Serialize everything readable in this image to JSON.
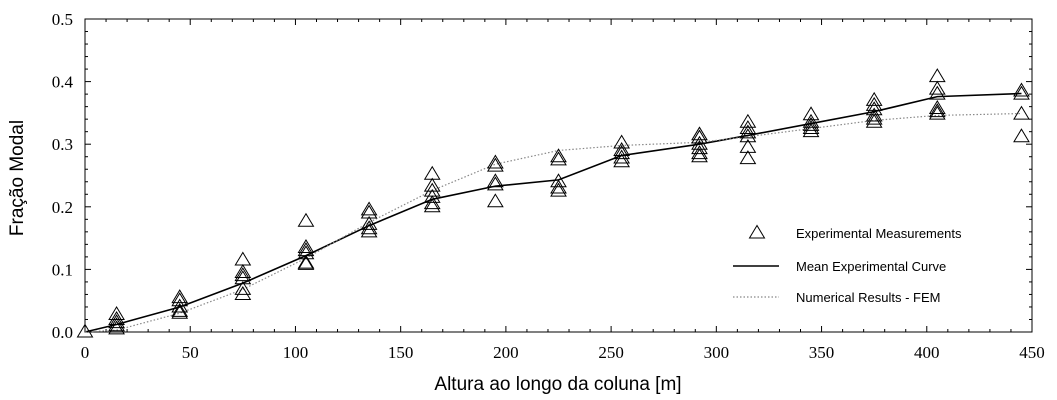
{
  "chart_data": {
    "type": "scatter",
    "xlabel": "Altura ao longo da coluna [m]",
    "ylabel": "Fração Modal",
    "xlim": [
      0,
      450
    ],
    "ylim": [
      0,
      0.5
    ],
    "xticks": [
      "0",
      "50",
      "100",
      "150",
      "200",
      "250",
      "300",
      "350",
      "400",
      "450"
    ],
    "yticks": [
      "0.0",
      "0.1",
      "0.2",
      "0.3",
      "0.4",
      "0.5"
    ],
    "grid": false,
    "legend": {
      "position": "lower-right",
      "entries": [
        "Experimental Measurements",
        "Mean Experimental Curve",
        "Numerical Results - FEM"
      ]
    },
    "series": [
      {
        "name": "Experimental Measurements",
        "type": "scatter",
        "marker": "triangle-open",
        "points": [
          [
            0,
            0.0
          ],
          [
            15,
            0.005
          ],
          [
            15,
            0.01
          ],
          [
            15,
            0.015
          ],
          [
            15,
            0.02
          ],
          [
            15,
            0.028
          ],
          [
            45,
            0.03
          ],
          [
            45,
            0.033
          ],
          [
            45,
            0.04
          ],
          [
            45,
            0.05
          ],
          [
            45,
            0.055
          ],
          [
            75,
            0.06
          ],
          [
            75,
            0.068
          ],
          [
            75,
            0.085
          ],
          [
            75,
            0.09
          ],
          [
            75,
            0.095
          ],
          [
            75,
            0.115
          ],
          [
            105,
            0.108
          ],
          [
            105,
            0.11
          ],
          [
            105,
            0.125
          ],
          [
            105,
            0.13
          ],
          [
            105,
            0.135
          ],
          [
            105,
            0.177
          ],
          [
            135,
            0.16
          ],
          [
            135,
            0.165
          ],
          [
            135,
            0.172
          ],
          [
            135,
            0.19
          ],
          [
            135,
            0.195
          ],
          [
            165,
            0.2
          ],
          [
            165,
            0.205
          ],
          [
            165,
            0.215
          ],
          [
            165,
            0.225
          ],
          [
            165,
            0.233
          ],
          [
            165,
            0.252
          ],
          [
            195,
            0.208
          ],
          [
            195,
            0.235
          ],
          [
            195,
            0.24
          ],
          [
            195,
            0.265
          ],
          [
            195,
            0.27
          ],
          [
            225,
            0.225
          ],
          [
            225,
            0.23
          ],
          [
            225,
            0.24
          ],
          [
            225,
            0.275
          ],
          [
            225,
            0.28
          ],
          [
            255,
            0.272
          ],
          [
            255,
            0.278
          ],
          [
            255,
            0.285
          ],
          [
            255,
            0.29
          ],
          [
            255,
            0.302
          ],
          [
            292,
            0.28
          ],
          [
            292,
            0.285
          ],
          [
            292,
            0.293
          ],
          [
            292,
            0.3
          ],
          [
            292,
            0.31
          ],
          [
            292,
            0.315
          ],
          [
            315,
            0.277
          ],
          [
            315,
            0.295
          ],
          [
            315,
            0.312
          ],
          [
            315,
            0.318
          ],
          [
            315,
            0.325
          ],
          [
            315,
            0.335
          ],
          [
            345,
            0.32
          ],
          [
            345,
            0.325
          ],
          [
            345,
            0.33
          ],
          [
            345,
            0.335
          ],
          [
            345,
            0.347
          ],
          [
            375,
            0.335
          ],
          [
            375,
            0.34
          ],
          [
            375,
            0.345
          ],
          [
            375,
            0.355
          ],
          [
            375,
            0.362
          ],
          [
            375,
            0.37
          ],
          [
            405,
            0.348
          ],
          [
            405,
            0.352
          ],
          [
            405,
            0.357
          ],
          [
            405,
            0.38
          ],
          [
            405,
            0.388
          ],
          [
            405,
            0.408
          ],
          [
            445,
            0.312
          ],
          [
            445,
            0.348
          ],
          [
            445,
            0.38
          ],
          [
            445,
            0.385
          ]
        ]
      },
      {
        "name": "Mean Experimental Curve",
        "type": "line",
        "style": "solid",
        "color": "#000000",
        "points": [
          [
            0,
            0.0
          ],
          [
            15,
            0.012
          ],
          [
            45,
            0.04
          ],
          [
            75,
            0.078
          ],
          [
            105,
            0.122
          ],
          [
            135,
            0.17
          ],
          [
            165,
            0.212
          ],
          [
            195,
            0.233
          ],
          [
            225,
            0.243
          ],
          [
            255,
            0.282
          ],
          [
            292,
            0.3
          ],
          [
            315,
            0.314
          ],
          [
            345,
            0.333
          ],
          [
            375,
            0.352
          ],
          [
            405,
            0.376
          ],
          [
            445,
            0.381
          ]
        ]
      },
      {
        "name": "Numerical Results - FEM",
        "type": "line",
        "style": "dotted",
        "color": "#888888",
        "points": [
          [
            0,
            0.0
          ],
          [
            15,
            0.003
          ],
          [
            45,
            0.03
          ],
          [
            75,
            0.068
          ],
          [
            105,
            0.118
          ],
          [
            135,
            0.175
          ],
          [
            165,
            0.226
          ],
          [
            195,
            0.268
          ],
          [
            225,
            0.29
          ],
          [
            255,
            0.298
          ],
          [
            292,
            0.303
          ],
          [
            315,
            0.312
          ],
          [
            345,
            0.325
          ],
          [
            375,
            0.338
          ],
          [
            405,
            0.346
          ],
          [
            445,
            0.349
          ]
        ]
      }
    ]
  }
}
